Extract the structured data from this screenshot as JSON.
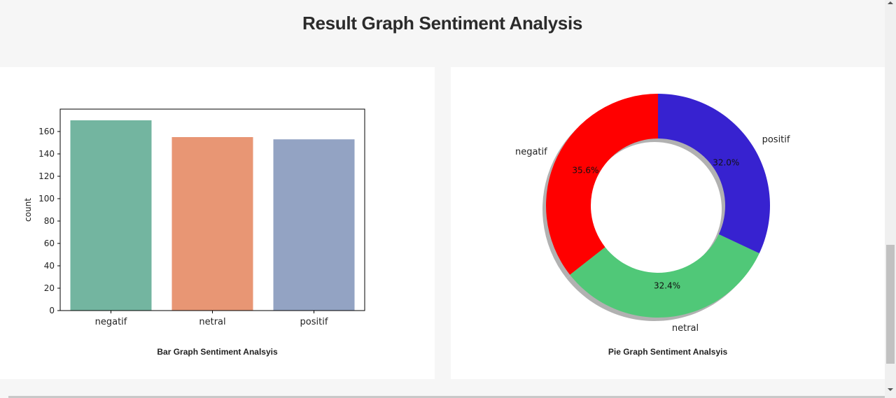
{
  "header": {
    "title": "Result Graph Sentiment Analysis"
  },
  "bar_card": {
    "caption": "Bar Graph Sentiment Analsyis"
  },
  "pie_card": {
    "caption": "Pie Graph Sentiment Analsyis"
  },
  "chart_data": [
    {
      "type": "bar",
      "title": "",
      "categories": [
        "negatif",
        "netral",
        "positif"
      ],
      "values": [
        170,
        155,
        153
      ],
      "colors": [
        "#73b5a0",
        "#e89674",
        "#93a3c3"
      ],
      "xlabel": "",
      "ylabel": "count",
      "ylim": [
        0,
        180
      ],
      "yticks": [
        0,
        20,
        40,
        60,
        80,
        100,
        120,
        140,
        160
      ],
      "grid": false,
      "legend": "none"
    },
    {
      "type": "pie",
      "style": "donut",
      "title": "",
      "categories": [
        "negatif",
        "netral",
        "positif"
      ],
      "values": [
        35.6,
        32.4,
        32.0
      ],
      "labels_pct": [
        "35.6%",
        "32.4%",
        "32.0%"
      ],
      "colors": [
        "#ff0000",
        "#50c878",
        "#3722d0"
      ],
      "start_angle": 90,
      "shadow": true,
      "legend": "none"
    }
  ]
}
